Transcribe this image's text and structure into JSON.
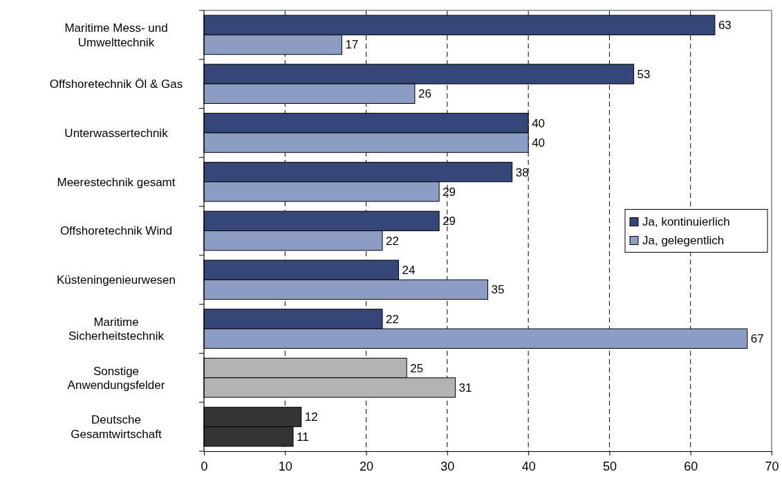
{
  "chart_data": {
    "type": "bar",
    "orientation": "horizontal",
    "categories": [
      "Maritime Mess- und\nUmwelttechnik",
      "Offshoretechnik Öl & Gas",
      "Unterwassertechnik",
      "Meerestechnik gesamt",
      "Offshoretechnik Wind",
      "Küsteningenieurwesen",
      "Maritime\nSicherheitstechnik",
      "Sonstige\nAnwendungsfelder",
      "Deutsche\nGesamtwirtschaft"
    ],
    "series": [
      {
        "name": "Ja, kontinuierlich",
        "color": "#344778",
        "colors": [
          "#344778",
          "#344778",
          "#344778",
          "#344778",
          "#344778",
          "#344778",
          "#344778",
          "#b3b3b3",
          "#333333"
        ],
        "values": [
          63,
          53,
          40,
          38,
          29,
          24,
          22,
          25,
          12
        ]
      },
      {
        "name": "Ja, gelegentlich",
        "color": "#8b9dc3",
        "colors": [
          "#8b9dc3",
          "#8b9dc3",
          "#8b9dc3",
          "#8b9dc3",
          "#8b9dc3",
          "#8b9dc3",
          "#8b9dc3",
          "#b3b3b3",
          "#333333"
        ],
        "values": [
          17,
          26,
          40,
          29,
          22,
          35,
          67,
          31,
          11
        ]
      }
    ],
    "xlim": [
      0,
      70
    ],
    "xticks": [
      0,
      10,
      20,
      30,
      40,
      50,
      60,
      70
    ],
    "grid": "x",
    "legend": "right",
    "data_labels": true
  }
}
